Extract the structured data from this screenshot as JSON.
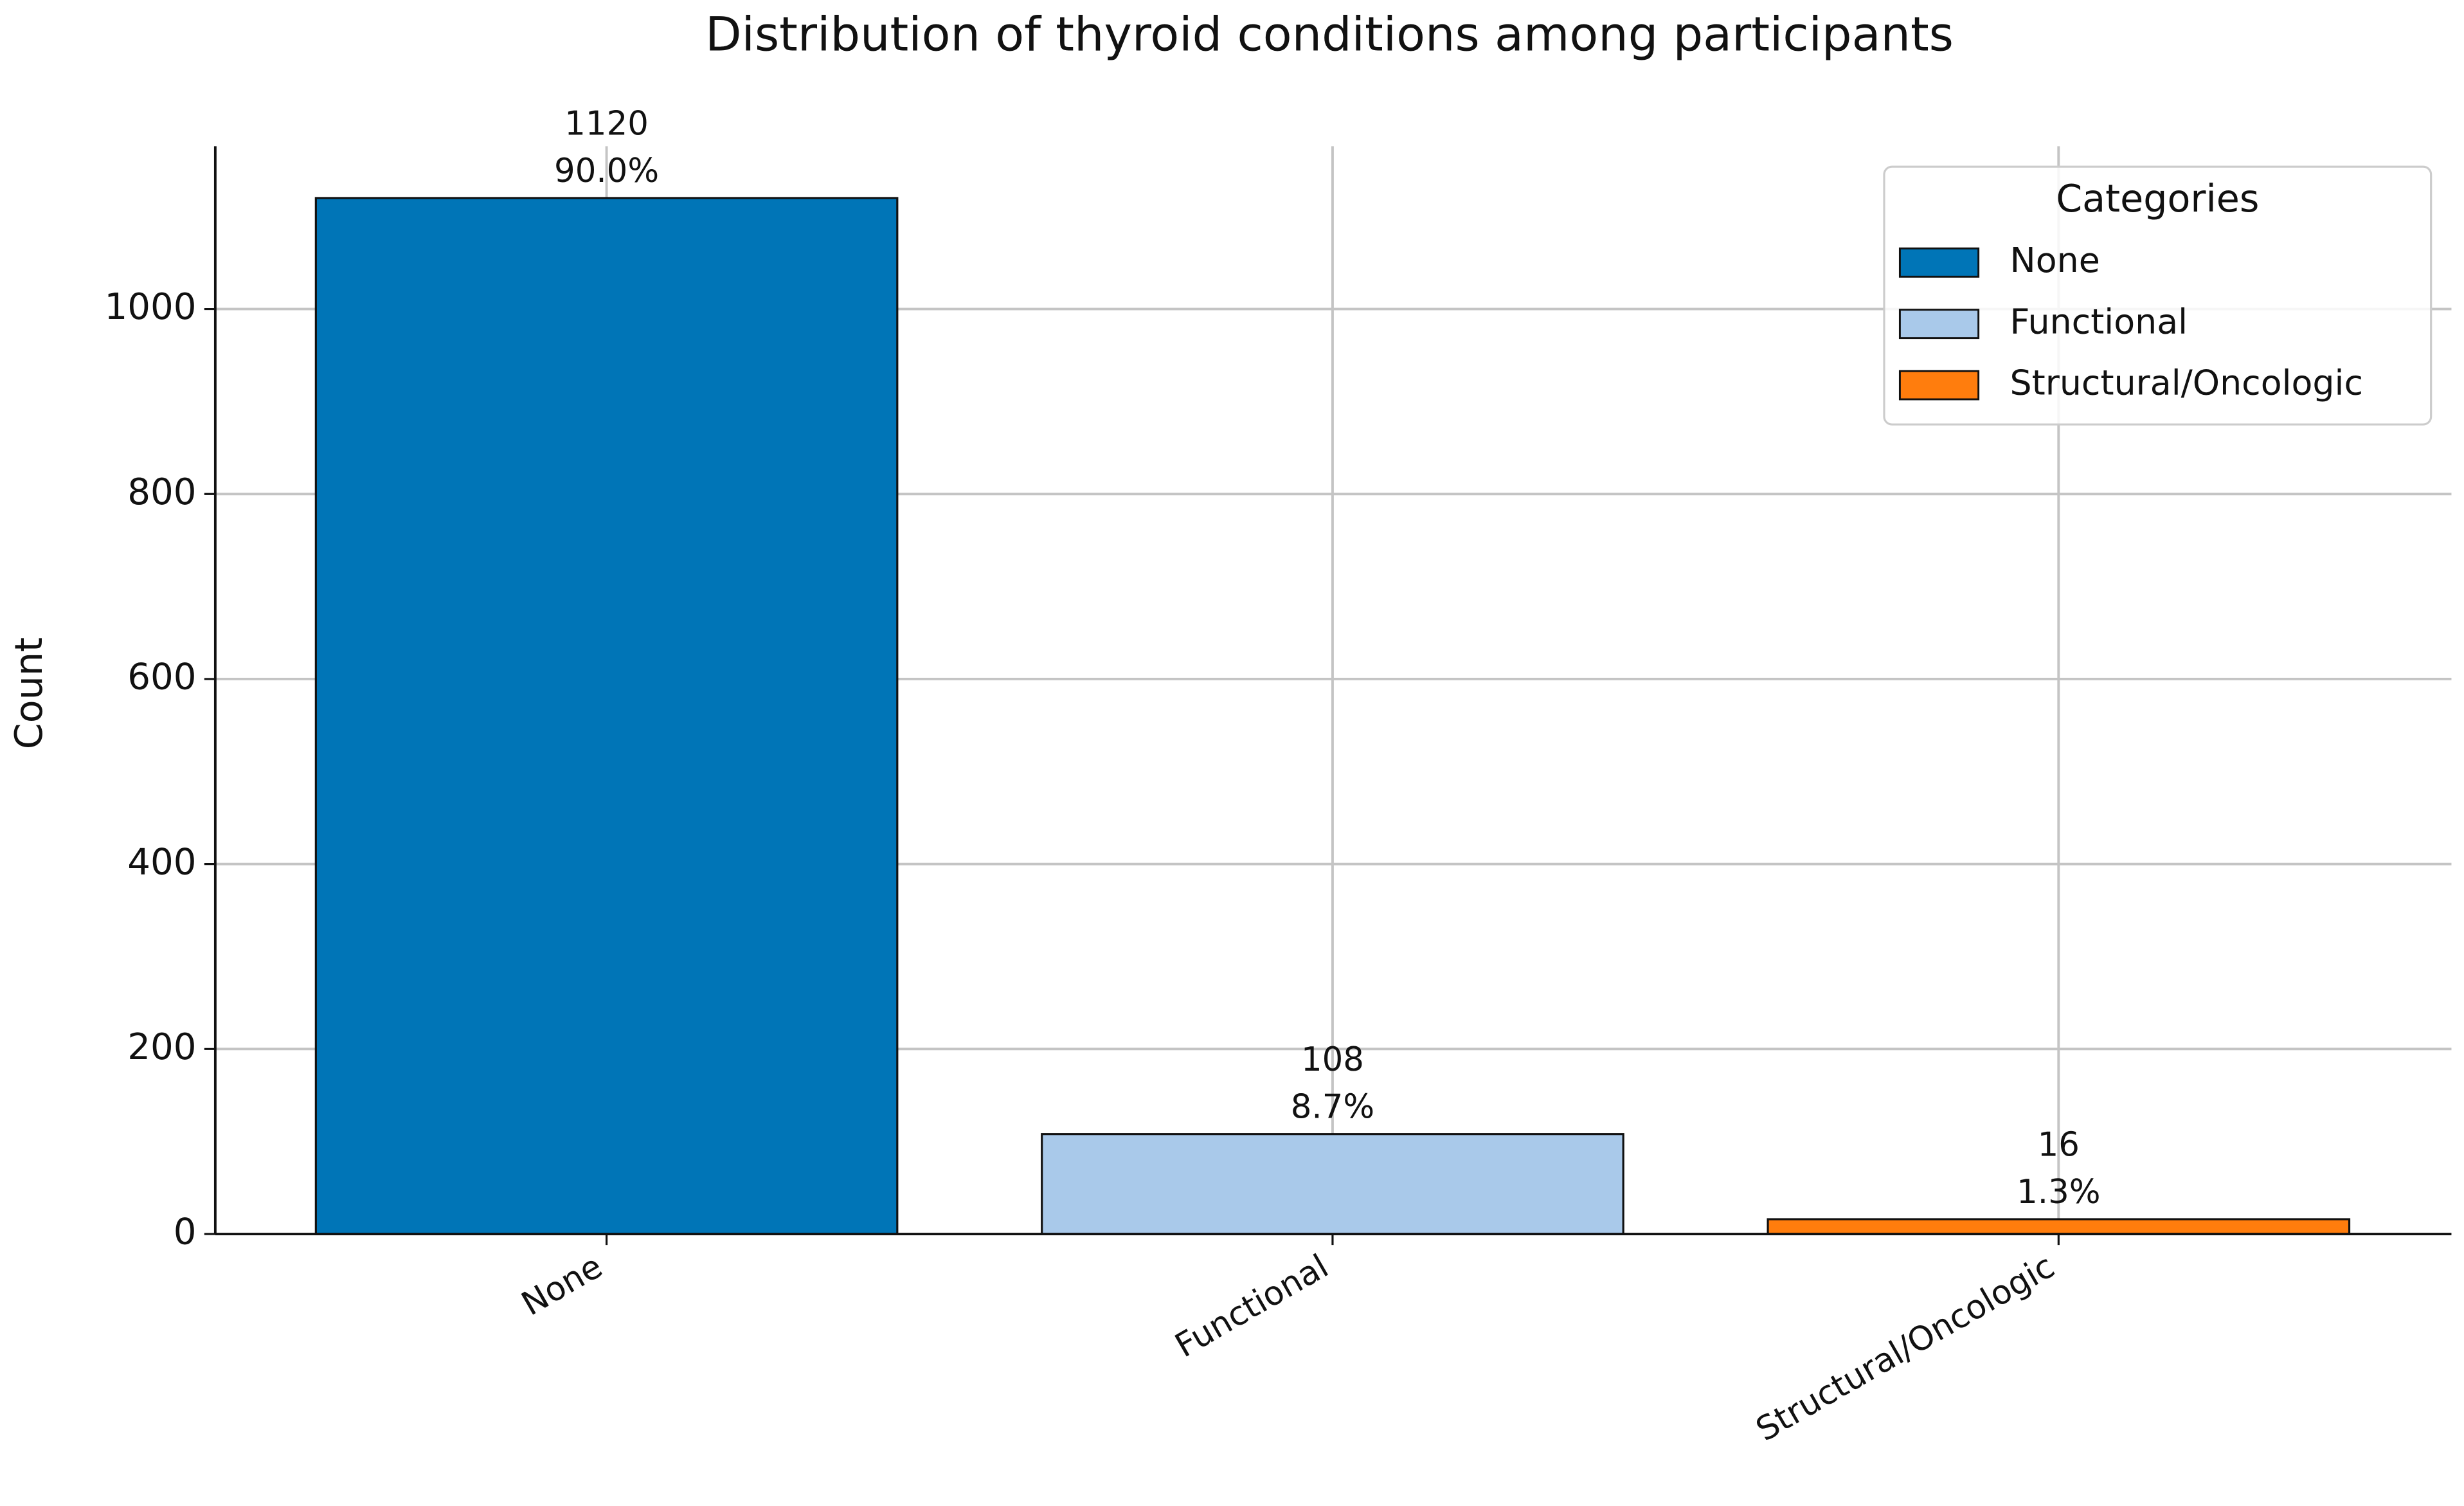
{
  "chart_data": {
    "type": "bar",
    "title": "Distribution of thyroid conditions among participants",
    "y_label": "Count",
    "categories": [
      "None",
      "Functional",
      "Structural/Oncologic"
    ],
    "values": [
      1120,
      108,
      16
    ],
    "percent_labels": [
      "90.0%",
      "8.7%",
      "1.3%"
    ],
    "colors": [
      "#0075b7",
      "#a9c9ea",
      "#ff7d0d"
    ],
    "ylim": [
      0,
      1176
    ],
    "yticks": [
      0,
      200,
      400,
      600,
      800,
      1000
    ],
    "grid": true,
    "legend": {
      "title": "Categories",
      "position": "upper right"
    }
  }
}
